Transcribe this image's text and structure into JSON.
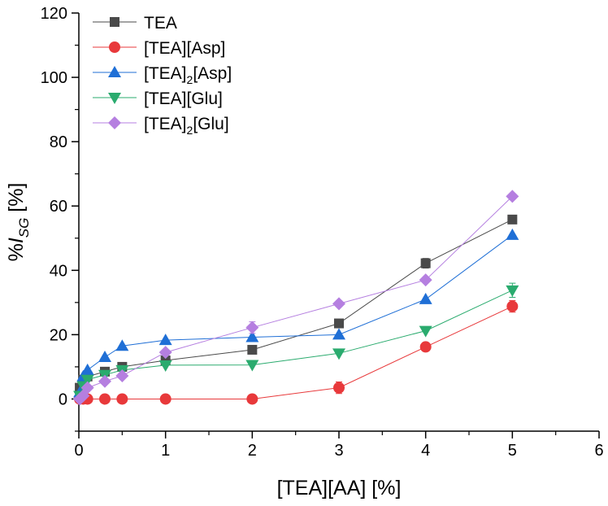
{
  "chart_data": {
    "type": "line",
    "title": "",
    "xlabel": "[TEA][AA] [%]",
    "ylabel_parts": {
      "prefix": "%",
      "italic": "I",
      "subscript": "SG",
      "suffix": " [%]"
    },
    "xlim": [
      0,
      6
    ],
    "ylim": [
      -10,
      120
    ],
    "x_ticks": [
      0,
      1,
      2,
      3,
      4,
      5,
      6
    ],
    "y_ticks": [
      0,
      20,
      40,
      60,
      80,
      100,
      120
    ],
    "legend_position": "top-left",
    "series": [
      {
        "name": "TEA",
        "name_parts": [
          "TEA"
        ],
        "color": "#4a4a4a",
        "marker": "square",
        "x": [
          0.01,
          0.05,
          0.1,
          0.3,
          0.5,
          1,
          2,
          3,
          4,
          5
        ],
        "y": [
          3.5,
          6,
          7,
          8.5,
          10,
          12,
          15.3,
          23.5,
          42.2,
          55.8
        ],
        "err": [
          0,
          0,
          0,
          0,
          0,
          0,
          0,
          0,
          1.5,
          1.2
        ]
      },
      {
        "name": "[TEA][Asp]",
        "name_parts": [
          "[TEA][Asp]"
        ],
        "color": "#e8393b",
        "marker": "circle",
        "x": [
          0.01,
          0.05,
          0.1,
          0.3,
          0.5,
          1,
          2,
          3,
          4,
          5
        ],
        "y": [
          0,
          0,
          0,
          0,
          0,
          0,
          0,
          3.5,
          16.2,
          28.8
        ],
        "err": [
          0,
          0,
          0,
          0,
          0,
          0,
          0,
          1.8,
          0,
          1.8
        ]
      },
      {
        "name": "[TEA]2[Asp]",
        "name_parts": [
          "[TEA]",
          "2",
          "[Asp]"
        ],
        "color": "#1f6fd6",
        "marker": "triangle-up",
        "x": [
          0.01,
          0.05,
          0.1,
          0.3,
          0.5,
          1,
          2,
          3,
          4,
          5
        ],
        "y": [
          2,
          7,
          9,
          13,
          16.5,
          18.3,
          19.2,
          20,
          31,
          51
        ],
        "err": [
          0,
          0,
          0,
          0,
          0,
          0,
          0,
          0,
          0,
          0
        ]
      },
      {
        "name": "[TEA][Glu]",
        "name_parts": [
          "[TEA][Glu]"
        ],
        "color": "#2aab6e",
        "marker": "triangle-down",
        "x": [
          0.01,
          0.05,
          0.1,
          0.3,
          0.5,
          1,
          2,
          3,
          4,
          5
        ],
        "y": [
          1,
          4,
          6,
          7.5,
          9,
          10.5,
          10.6,
          14.2,
          21.2,
          33.8
        ],
        "err": [
          0,
          0,
          0,
          0,
          0,
          0,
          0,
          0,
          0,
          2.2
        ]
      },
      {
        "name": "[TEA]2[Glu]",
        "name_parts": [
          "[TEA]",
          "2",
          "[Glu]"
        ],
        "color": "#b57fe0",
        "marker": "diamond",
        "x": [
          0.01,
          0.05,
          0.1,
          0.3,
          0.5,
          1,
          2,
          3,
          4,
          5
        ],
        "y": [
          0,
          1,
          3.5,
          5.5,
          7.2,
          14.5,
          22.2,
          29.6,
          37,
          63
        ],
        "err": [
          0,
          0,
          0,
          0,
          0,
          0,
          1.8,
          0,
          0,
          0
        ]
      }
    ]
  }
}
